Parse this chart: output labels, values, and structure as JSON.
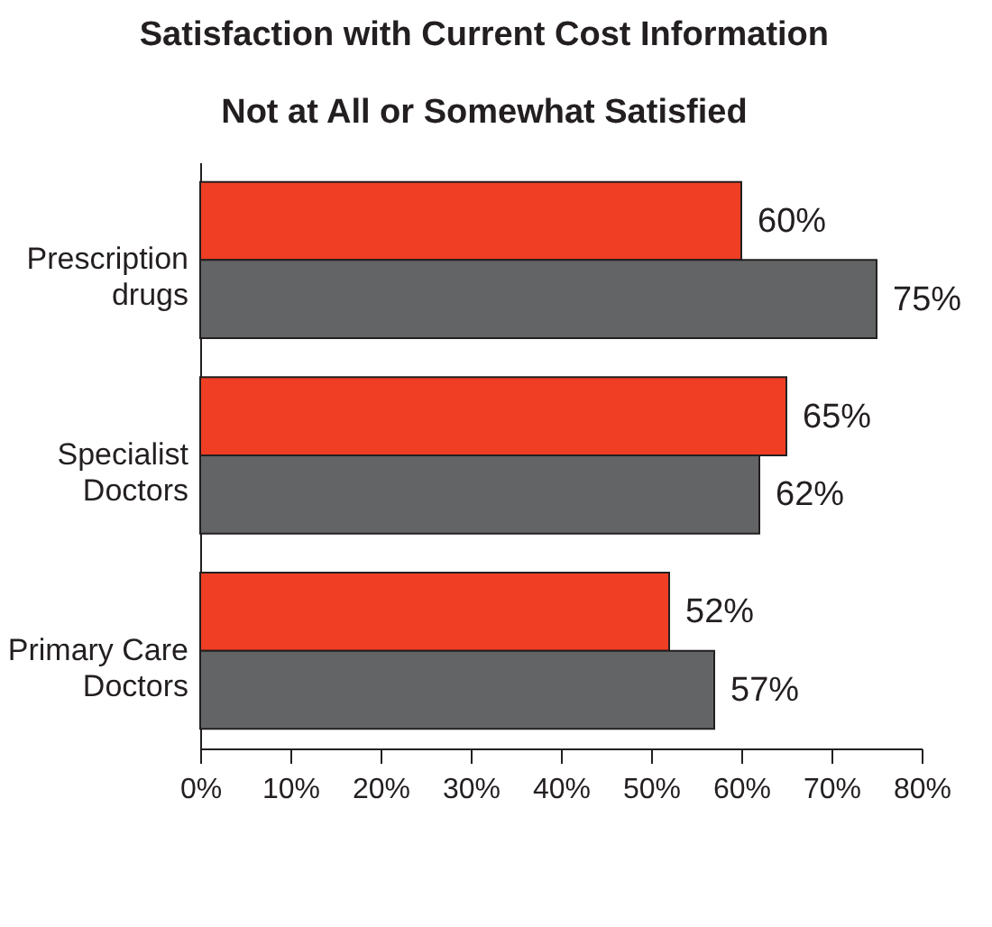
{
  "chart_data": {
    "type": "bar",
    "orientation": "horizontal",
    "title": "Satisfaction with Current Cost Information",
    "subtitle": "Not at All or Somewhat Satisfied",
    "categories": [
      "Prescription drugs",
      "Specialist Doctors",
      "Primary Care Doctors"
    ],
    "series": [
      {
        "color": "#ef3e23",
        "values": [
          60,
          65,
          52
        ],
        "value_labels": [
          "60%",
          "65%",
          "52%"
        ]
      },
      {
        "color": "#636466",
        "values": [
          75,
          62,
          57
        ],
        "value_labels": [
          "75%",
          "62%",
          "57%"
        ]
      }
    ],
    "xlim": [
      0,
      80
    ],
    "xticks": [
      {
        "value": 0,
        "label": "0%"
      },
      {
        "value": 10,
        "label": "10%"
      },
      {
        "value": 20,
        "label": "20%"
      },
      {
        "value": 30,
        "label": "30%"
      },
      {
        "value": 40,
        "label": "40%"
      },
      {
        "value": 50,
        "label": "50%"
      },
      {
        "value": 60,
        "label": "60%"
      },
      {
        "value": 70,
        "label": "70%"
      },
      {
        "value": 80,
        "label": "80%"
      }
    ]
  }
}
